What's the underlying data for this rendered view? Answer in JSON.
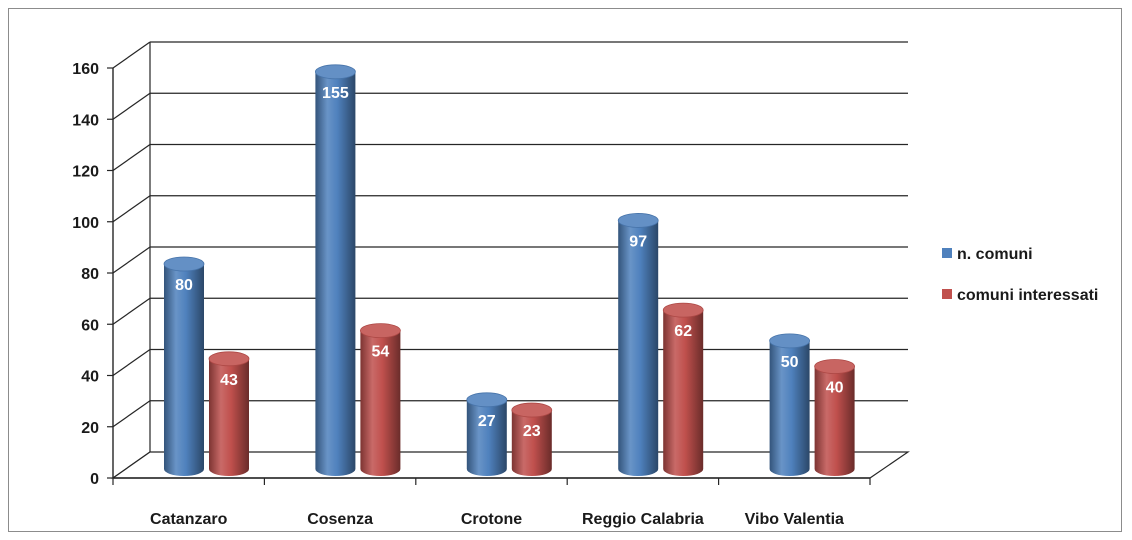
{
  "chart_data": {
    "type": "bar",
    "title": "",
    "xlabel": "",
    "ylabel": "",
    "categories": [
      "Catanzaro",
      "Cosenza",
      "Crotone",
      "Reggio Calabria",
      "Vibo Valentia"
    ],
    "series": [
      {
        "name": "n. comuni",
        "values": [
          80,
          155,
          27,
          97,
          50
        ],
        "color": "#4F81BD"
      },
      {
        "name": "comuni interessati",
        "values": [
          43,
          54,
          23,
          62,
          40
        ],
        "color": "#C0504D"
      }
    ],
    "ylim": [
      0,
      160
    ],
    "yticks": [
      0,
      20,
      40,
      60,
      80,
      100,
      120,
      140,
      160
    ],
    "grid": true,
    "legend_position": "right",
    "style": "3d-cylinder"
  }
}
